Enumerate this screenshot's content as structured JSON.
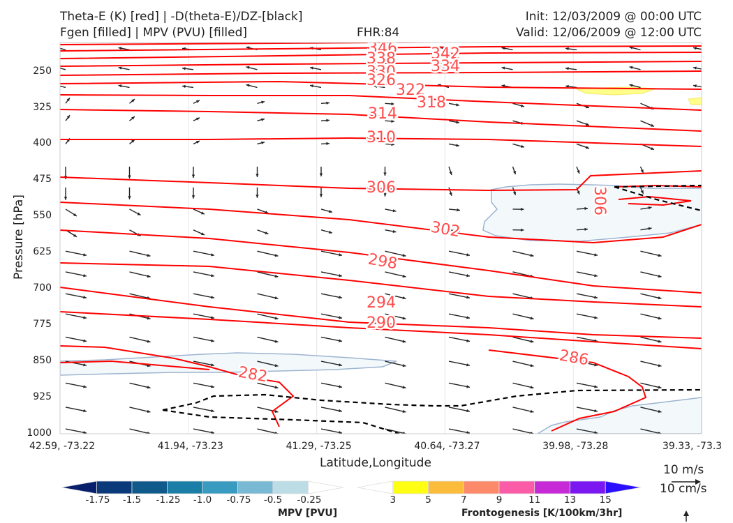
{
  "header": {
    "title_left_1": "Theta-E (K) [red] | -D(theta-E)/DZ-[black]",
    "title_left_2": "Fgen [filled] | MPV (PVU) [filled]",
    "fhr": "FHR:84",
    "init": "Init: 12/03/2009 @ 00:00 UTC",
    "valid": "Valid: 12/06/2009 @ 12:00 UTC"
  },
  "chart_data": {
    "type": "cross-section",
    "xlabel": "Latitude,Longitude",
    "ylabel": "Pressure [hPa]",
    "x_tick_labels": [
      "42.59, -73.22",
      "41.94, -73.23",
      "41.29, -73.25",
      "40.64, -73.27",
      "39.98, -73.28",
      "39.33, -73.3"
    ],
    "y_ticks": [
      250,
      325,
      400,
      475,
      550,
      625,
      700,
      775,
      850,
      925,
      1000
    ],
    "ylim": [
      1000,
      190
    ],
    "theta_e_contours": {
      "color": "#ff0000",
      "labels": [
        {
          "value": "346",
          "x": 0.5,
          "p": 200
        },
        {
          "value": "342",
          "x": 0.6,
          "p": 210
        },
        {
          "value": "338",
          "x": 0.5,
          "p": 212
        },
        {
          "value": "334",
          "x": 0.6,
          "p": 234
        },
        {
          "value": "330",
          "x": 0.5,
          "p": 248
        },
        {
          "value": "326",
          "x": 0.5,
          "p": 268
        },
        {
          "value": "322",
          "x": 0.55,
          "p": 292
        },
        {
          "value": "318",
          "x": 0.6,
          "p": 320
        },
        {
          "value": "314",
          "x": 0.5,
          "p": 345
        },
        {
          "value": "310",
          "x": 0.5,
          "p": 398
        },
        {
          "value": "306",
          "x": 0.5,
          "p": 498
        },
        {
          "value": "306",
          "x": 0.83,
          "p": 520
        },
        {
          "value": "302",
          "x": 0.6,
          "p": 586
        },
        {
          "value": "298",
          "x": 0.5,
          "p": 660
        },
        {
          "value": "294",
          "x": 0.5,
          "p": 744
        },
        {
          "value": "290",
          "x": 0.5,
          "p": 774
        },
        {
          "value": "286",
          "x": 0.8,
          "p": 840
        },
        {
          "value": "282",
          "x": 0.3,
          "p": 882
        }
      ]
    },
    "wind_reference": [
      "10 m/s",
      "10 cm/s"
    ],
    "mpv_colorbar": {
      "label": "MPV [PVU]",
      "ticks": [
        "-1.75",
        "-1.5",
        "-1.25",
        "-1.0",
        "-0.75",
        "-0.5",
        "-0.25"
      ],
      "colors": [
        "#08206b",
        "#0b3a7a",
        "#0f5a8a",
        "#1a7ea6",
        "#3a9bc0",
        "#7ab9d3",
        "#bcdde6",
        "#ffffff"
      ]
    },
    "fgen_colorbar": {
      "label": "Frontogenesis [K/100km/3hr]",
      "ticks": [
        "3",
        "5",
        "7",
        "9",
        "11",
        "13",
        "15"
      ],
      "colors": [
        "#ffffff",
        "#ffff14",
        "#fbbc3c",
        "#fc8a6a",
        "#fb5ca8",
        "#c52ad6",
        "#7b17f0",
        "#2a10ff"
      ]
    }
  }
}
